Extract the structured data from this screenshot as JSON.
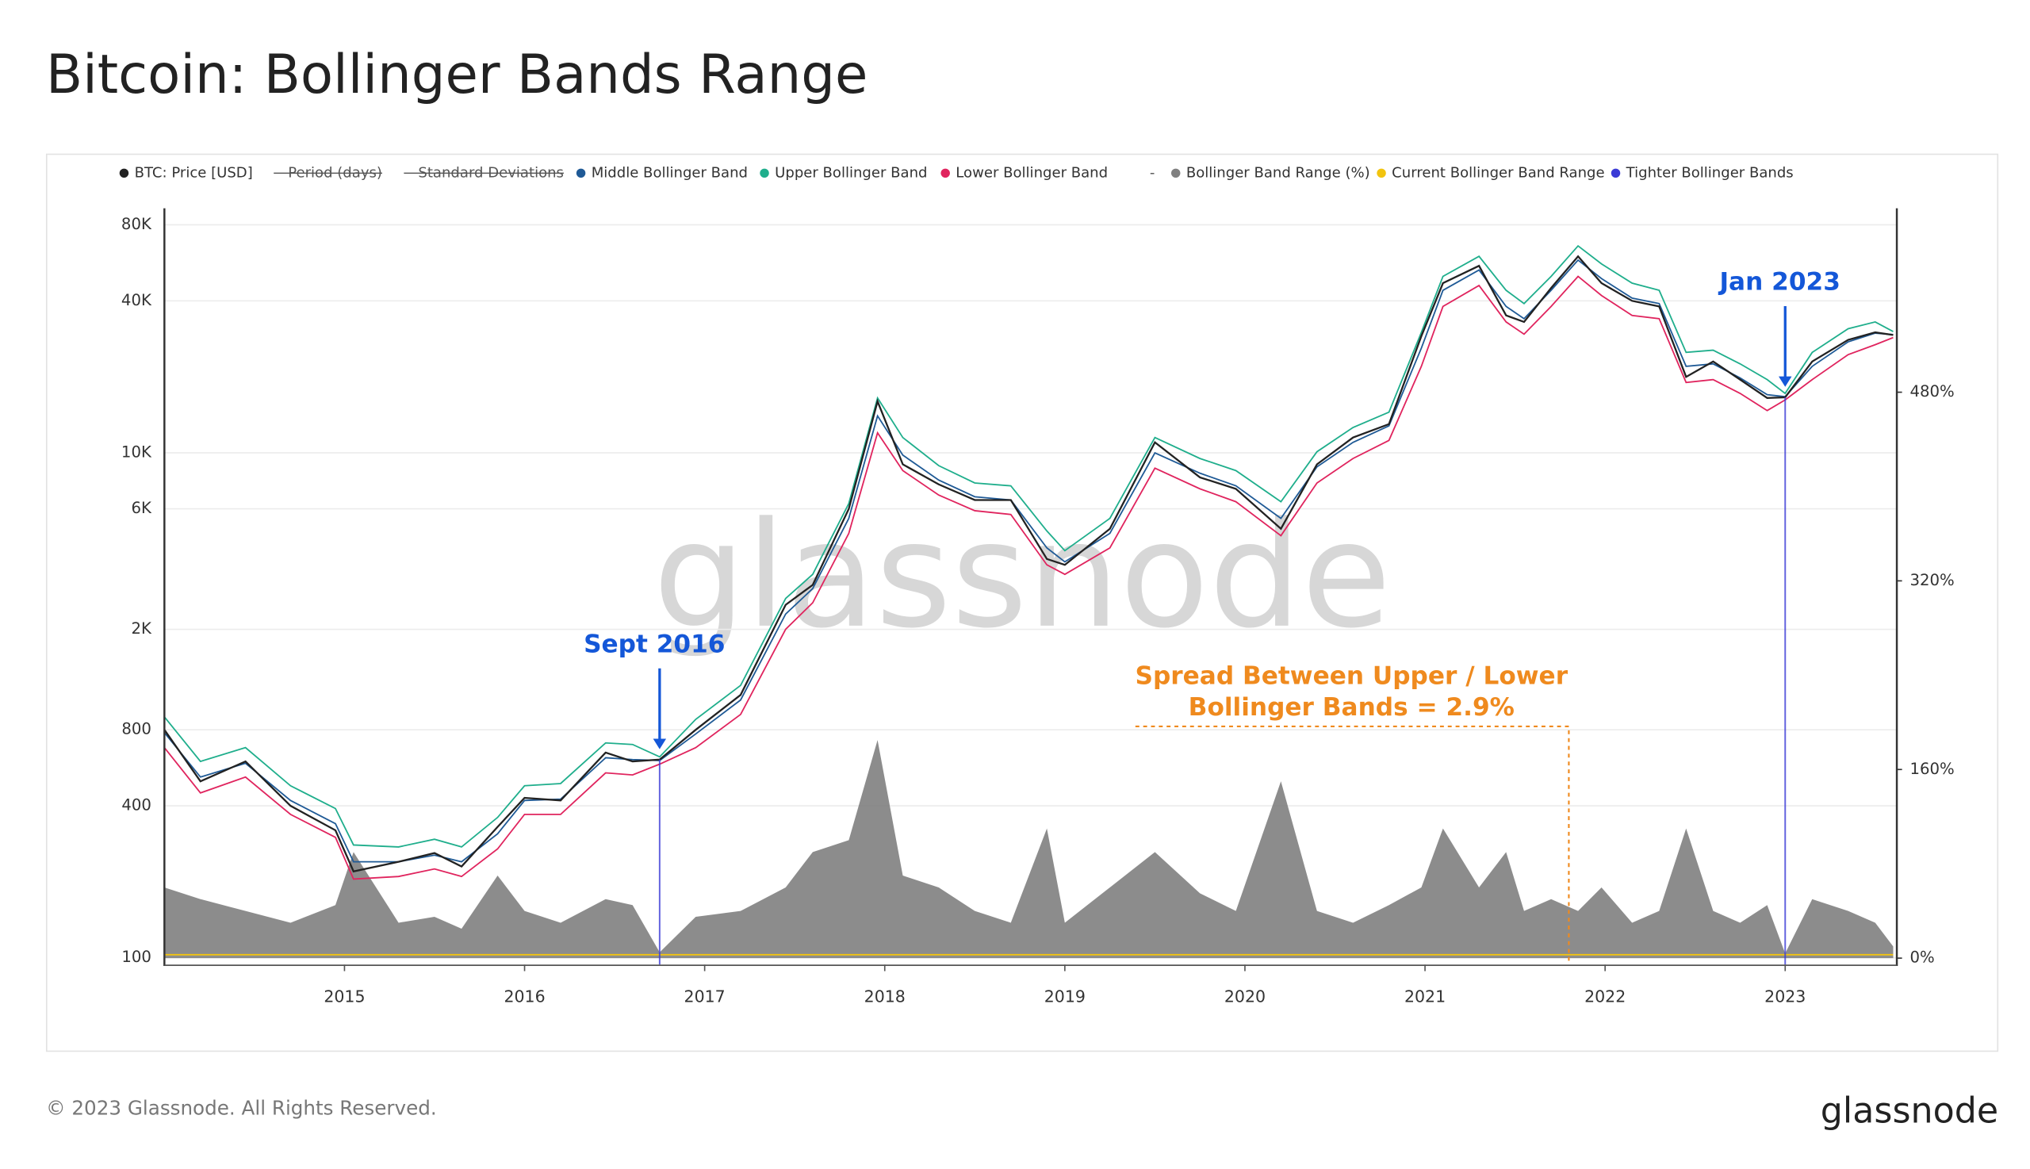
{
  "chart_data": {
    "type": "line",
    "title": "Bitcoin: Bollinger Bands Range",
    "log_y": true,
    "grid": true,
    "xlim": [
      2014.0,
      2023.62
    ],
    "xticks": [
      2015,
      2016,
      2017,
      2018,
      2019,
      2020,
      2021,
      2022,
      2023
    ],
    "ylim": [
      94,
      93000
    ],
    "yticks": [
      100,
      400,
      800,
      {
        "value": 2000,
        "label": "2K"
      },
      {
        "value": 6000,
        "label": "6K"
      },
      {
        "value": 10000,
        "label": "10K"
      },
      {
        "value": 40000,
        "label": "40K"
      },
      {
        "value": 80000,
        "label": "80K"
      }
    ],
    "y2lim": [
      -5.5,
      636
    ],
    "y2ticks": [
      {
        "value": 0,
        "label": "0%"
      },
      {
        "value": 160,
        "label": "160%"
      },
      {
        "value": 320,
        "label": "320%"
      },
      {
        "value": 480,
        "label": "480%"
      }
    ],
    "x": [
      2014.0,
      2014.2,
      2014.45,
      2014.7,
      2014.95,
      2015.05,
      2015.3,
      2015.5,
      2015.65,
      2015.85,
      2016.0,
      2016.2,
      2016.45,
      2016.6,
      2016.75,
      2016.95,
      2017.2,
      2017.45,
      2017.6,
      2017.8,
      2017.96,
      2018.1,
      2018.3,
      2018.5,
      2018.7,
      2018.9,
      2019.0,
      2019.25,
      2019.5,
      2019.75,
      2019.95,
      2020.2,
      2020.4,
      2020.6,
      2020.8,
      2020.98,
      2021.1,
      2021.3,
      2021.45,
      2021.55,
      2021.7,
      2021.85,
      2021.98,
      2022.15,
      2022.3,
      2022.45,
      2022.6,
      2022.75,
      2022.9,
      2023.0,
      2023.15,
      2023.35,
      2023.5,
      2023.6
    ],
    "series": [
      {
        "name": "Bollinger Band Range (%)",
        "color": "#808080",
        "axis": "y2",
        "kind": "area",
        "values": [
          60,
          50,
          40,
          30,
          45,
          90,
          30,
          35,
          25,
          70,
          40,
          30,
          50,
          45,
          5,
          35,
          40,
          60,
          90,
          100,
          185,
          70,
          60,
          40,
          30,
          110,
          30,
          60,
          90,
          55,
          40,
          150,
          40,
          30,
          45,
          60,
          110,
          60,
          90,
          40,
          50,
          40,
          60,
          30,
          40,
          110,
          40,
          30,
          45,
          4,
          50,
          40,
          30,
          10
        ]
      },
      {
        "name": "Lower Bollinger Band",
        "color": "#e0245e",
        "values": [
          680,
          450,
          520,
          370,
          300,
          205,
          210,
          225,
          210,
          270,
          370,
          370,
          540,
          530,
          585,
          680,
          920,
          2000,
          2550,
          4800,
          12000,
          8500,
          6800,
          5900,
          5700,
          3600,
          3300,
          4200,
          8700,
          7200,
          6400,
          4700,
          7600,
          9500,
          11200,
          22000,
          38000,
          46000,
          33000,
          29500,
          38000,
          50000,
          42000,
          35000,
          34000,
          19000,
          19500,
          17200,
          14700,
          16200,
          19500,
          24500,
          26800,
          28600
        ]
      },
      {
        "name": "Upper Bollinger Band",
        "color": "#1fae8c",
        "values": [
          900,
          600,
          680,
          480,
          390,
          280,
          275,
          295,
          275,
          360,
          480,
          490,
          710,
          700,
          625,
          880,
          1200,
          2650,
          3300,
          6300,
          16500,
          11500,
          8900,
          7600,
          7400,
          4900,
          4100,
          5500,
          11500,
          9500,
          8500,
          6400,
          10100,
          12600,
          14500,
          30000,
          50000,
          60000,
          44000,
          39000,
          50000,
          66000,
          56000,
          47000,
          44000,
          25000,
          25500,
          22500,
          19500,
          17200,
          25000,
          31000,
          33000,
          30200
        ]
      },
      {
        "name": "Middle Bollinger Band",
        "color": "#1f5a96",
        "values": [
          780,
          520,
          590,
          420,
          340,
          240,
          240,
          255,
          240,
          310,
          420,
          425,
          620,
          610,
          605,
          770,
          1050,
          2300,
          2900,
          5500,
          14000,
          9800,
          7800,
          6700,
          6500,
          4200,
          3700,
          4800,
          10000,
          8300,
          7400,
          5500,
          8800,
          11000,
          12800,
          26000,
          44000,
          53000,
          38000,
          34000,
          44000,
          58000,
          49000,
          41000,
          39000,
          22000,
          22500,
          19800,
          17000,
          16700,
          22000,
          27500,
          29800,
          29400
        ]
      },
      {
        "name": "BTC: Price [USD]",
        "color": "#222222",
        "values": [
          800,
          500,
          600,
          400,
          320,
          220,
          240,
          260,
          230,
          330,
          430,
          420,
          650,
          600,
          610,
          800,
          1100,
          2500,
          3000,
          6000,
          16000,
          9000,
          7500,
          6500,
          6500,
          3800,
          3600,
          5000,
          11000,
          8000,
          7200,
          5000,
          9000,
          11500,
          13000,
          29000,
          47000,
          55000,
          35000,
          33000,
          45000,
          60000,
          47000,
          40000,
          38000,
          20000,
          23000,
          19500,
          16500,
          16600,
          23000,
          28000,
          30000,
          29300
        ]
      },
      {
        "name": "Current Bollinger Band Range",
        "color": "#f2c40f",
        "axis": "y2",
        "x": [
          2014.0,
          2023.6
        ],
        "values": [
          2.9,
          2.9
        ]
      },
      {
        "name": "Tighter Bollinger Bands",
        "color": "#3b3bd6",
        "axis": "y2",
        "kind": "vline",
        "x": [
          2016.75,
          2023.0
        ],
        "values": [
          5,
          4
        ]
      }
    ],
    "hidden_series": [
      {
        "name": "Period (days)"
      },
      {
        "name": "Standard Deviations"
      },
      {
        "name": "-"
      }
    ],
    "annotations": [
      "Sept 2016",
      "Jan 2023"
    ],
    "spread_note": [
      "Spread Between Upper / Lower",
      "Bollinger Bands = 2.9%"
    ],
    "watermark": "glassnode"
  },
  "footer": {
    "copyright": "© 2023 Glassnode. All Rights Reserved.",
    "logo": "glassnode"
  }
}
